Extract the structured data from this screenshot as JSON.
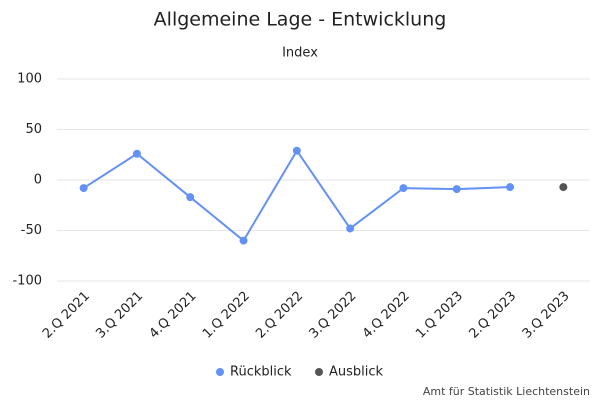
{
  "chart_data": {
    "type": "line",
    "title": "Allgemeine Lage - Entwicklung",
    "subtitle": "Index",
    "categories": [
      "2.Q 2021",
      "3.Q 2021",
      "4.Q 2021",
      "1.Q 2022",
      "2.Q 2022",
      "3.Q 2022",
      "4.Q 2022",
      "1.Q 2023",
      "2.Q 2023",
      "3.Q 2023"
    ],
    "series": [
      {
        "name": "Rückblick",
        "color": "#6491f5",
        "values": [
          -8,
          26,
          -17,
          -60,
          29,
          -48,
          -8,
          -9,
          -7,
          null
        ]
      },
      {
        "name": "Ausblick",
        "color": "#555555",
        "values": [
          null,
          null,
          null,
          null,
          null,
          null,
          null,
          null,
          null,
          -7
        ]
      }
    ],
    "ylim": [
      -100,
      100
    ],
    "yticks": [
      -100,
      -50,
      0,
      50,
      100
    ],
    "grid": true,
    "credit": "Amt für Statistik Liechtenstein"
  }
}
